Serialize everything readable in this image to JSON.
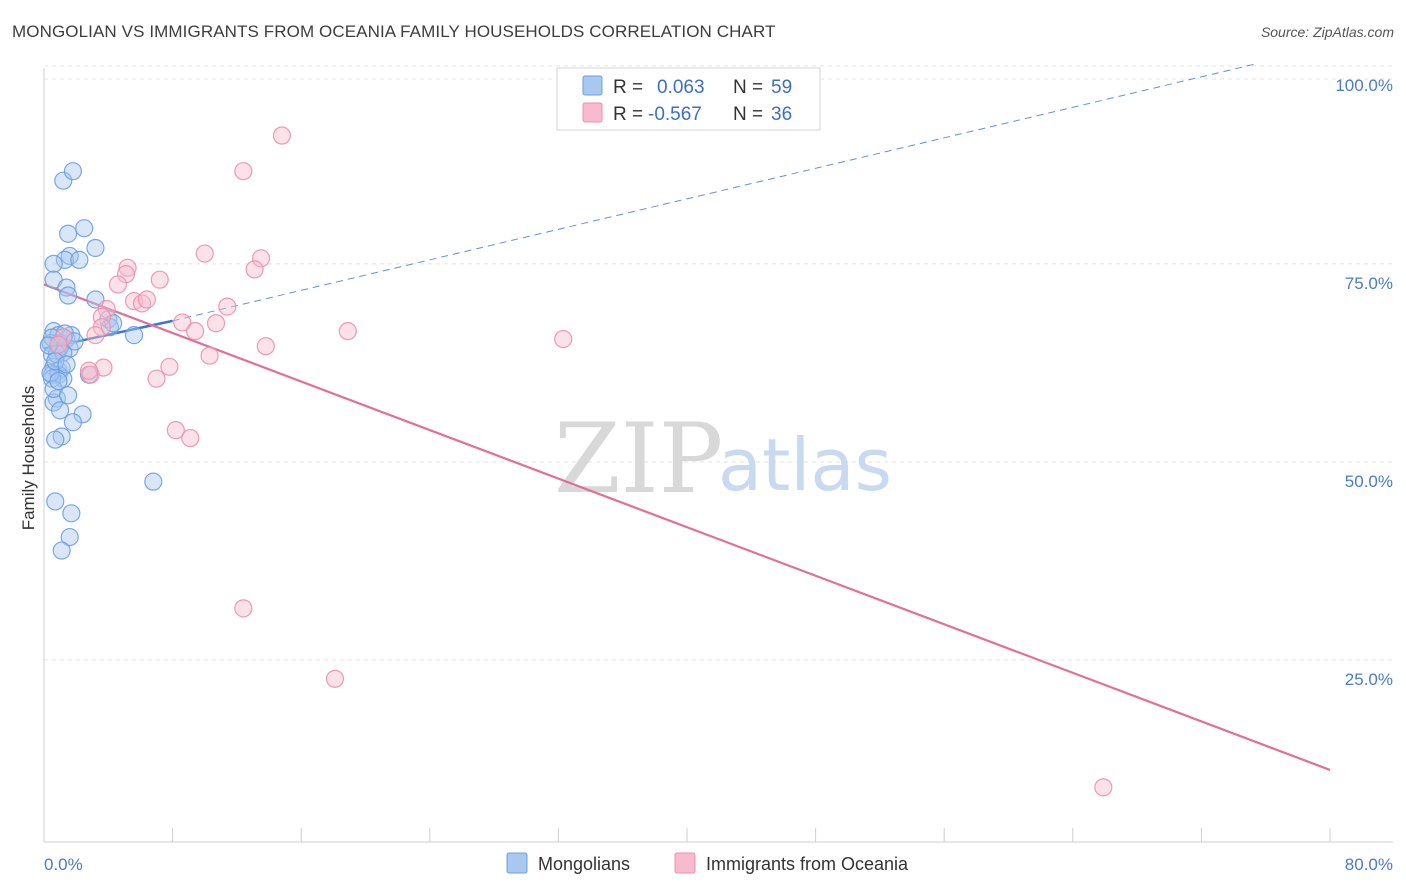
{
  "header": {
    "title": "MONGOLIAN VS IMMIGRANTS FROM OCEANIA FAMILY HOUSEHOLDS CORRELATION CHART",
    "source": "Source: ZipAtlas.com"
  },
  "watermark": {
    "zip": "ZIP",
    "atlas": "atlas"
  },
  "legend": {
    "r_label": "R =",
    "n_label": "N =",
    "rows": [
      {
        "r": "0.063",
        "n": "59"
      },
      {
        "r": "-0.567",
        "n": "36"
      }
    ]
  },
  "colors": {
    "mongolians_fill": "#a9c8f0",
    "mongolians_stroke": "#6b9fe0",
    "mongolians_line": "#3a78c8",
    "oceania_fill": "#f6bccd",
    "oceania_stroke": "#ee8fae",
    "oceania_line": "#e0709a",
    "grid": "#e3e3e3",
    "tick_label": "#4a7cc9"
  },
  "chart_data": {
    "type": "scatter",
    "title": "MONGOLIAN VS IMMIGRANTS FROM OCEANIA FAMILY HOUSEHOLDS CORRELATION CHART",
    "xlabel": "",
    "ylabel": "Family Households",
    "xlim": [
      0,
      80
    ],
    "ylim": [
      2,
      102
    ],
    "x_tick_labels": [
      "0.0%",
      "80.0%"
    ],
    "y_ticks": [
      25,
      50,
      75,
      100
    ],
    "y_tick_labels": [
      "25.0%",
      "50.0%",
      "75.0%",
      "100.0%"
    ],
    "series": [
      {
        "name": "Mongolians",
        "r": 0.063,
        "n": 59,
        "points": [
          [
            1.2,
            85.5
          ],
          [
            1.8,
            86.7
          ],
          [
            1.5,
            78.8
          ],
          [
            2.5,
            79.5
          ],
          [
            3.2,
            77.0
          ],
          [
            1.6,
            76.0
          ],
          [
            1.3,
            75.5
          ],
          [
            0.6,
            75.0
          ],
          [
            2.2,
            75.5
          ],
          [
            0.6,
            73.0
          ],
          [
            1.4,
            72.0
          ],
          [
            1.5,
            71.0
          ],
          [
            3.2,
            70.5
          ],
          [
            4.0,
            68.0
          ],
          [
            4.1,
            67.0
          ],
          [
            5.6,
            66.0
          ],
          [
            0.6,
            66.5
          ],
          [
            0.9,
            66.0
          ],
          [
            1.4,
            65.5
          ],
          [
            1.7,
            66.0
          ],
          [
            1.0,
            65.0
          ],
          [
            0.4,
            65.0
          ],
          [
            0.9,
            64.0
          ],
          [
            0.5,
            63.5
          ],
          [
            1.6,
            64.3
          ],
          [
            1.0,
            64.5
          ],
          [
            0.6,
            62.0
          ],
          [
            0.9,
            61.5
          ],
          [
            1.1,
            61.8
          ],
          [
            0.5,
            61.0
          ],
          [
            0.9,
            61.0
          ],
          [
            1.2,
            60.5
          ],
          [
            0.5,
            60.5
          ],
          [
            0.4,
            61.2
          ],
          [
            0.8,
            58.0
          ],
          [
            0.6,
            57.5
          ],
          [
            1.0,
            56.5
          ],
          [
            2.4,
            56.0
          ],
          [
            1.8,
            55.0
          ],
          [
            1.1,
            53.2
          ],
          [
            0.7,
            52.8
          ],
          [
            6.8,
            47.5
          ],
          [
            0.7,
            45.0
          ],
          [
            1.7,
            43.5
          ],
          [
            1.6,
            40.5
          ],
          [
            1.1,
            38.8
          ],
          [
            0.5,
            65.7
          ],
          [
            1.3,
            66.2
          ],
          [
            4.3,
            67.5
          ],
          [
            0.8,
            63.6
          ],
          [
            1.2,
            63.8
          ],
          [
            0.3,
            64.7
          ],
          [
            0.7,
            62.7
          ],
          [
            2.8,
            61.0
          ],
          [
            1.9,
            65.2
          ],
          [
            1.4,
            62.3
          ],
          [
            0.6,
            59.2
          ],
          [
            1.5,
            58.4
          ],
          [
            0.9,
            60.2
          ]
        ],
        "trend": {
          "x": [
            0,
            8
          ],
          "y": [
            64.3,
            67.8
          ]
        },
        "trend_extended": {
          "x": [
            8,
            75.5
          ],
          "y": [
            67.8,
            100.3
          ]
        }
      },
      {
        "name": "Immigrants from Oceania",
        "r": -0.567,
        "n": 36,
        "points": [
          [
            14.8,
            91.2
          ],
          [
            12.4,
            86.7
          ],
          [
            10.0,
            76.3
          ],
          [
            13.5,
            75.7
          ],
          [
            13.1,
            74.3
          ],
          [
            5.2,
            74.5
          ],
          [
            5.1,
            73.7
          ],
          [
            7.2,
            73.0
          ],
          [
            4.6,
            72.4
          ],
          [
            5.6,
            70.3
          ],
          [
            6.1,
            70.0
          ],
          [
            6.4,
            70.5
          ],
          [
            11.4,
            69.6
          ],
          [
            3.9,
            69.3
          ],
          [
            3.6,
            68.3
          ],
          [
            8.6,
            67.6
          ],
          [
            10.7,
            67.5
          ],
          [
            9.4,
            66.5
          ],
          [
            18.9,
            66.5
          ],
          [
            3.6,
            67.0
          ],
          [
            3.2,
            66.0
          ],
          [
            32.3,
            65.5
          ],
          [
            13.8,
            64.6
          ],
          [
            3.7,
            61.9
          ],
          [
            10.3,
            63.4
          ],
          [
            7.8,
            62.0
          ],
          [
            2.9,
            61.0
          ],
          [
            7.0,
            60.5
          ],
          [
            8.2,
            54.0
          ],
          [
            9.1,
            53.0
          ],
          [
            12.4,
            31.5
          ],
          [
            18.1,
            22.6
          ],
          [
            65.9,
            8.9
          ],
          [
            1.2,
            65.7
          ],
          [
            2.8,
            61.5
          ],
          [
            0.9,
            64.8
          ]
        ],
        "trend": {
          "x": [
            0,
            80
          ],
          "y": [
            72.4,
            11.1
          ]
        }
      }
    ],
    "legend_position": "top-center",
    "bottom_legend": [
      "Mongolians",
      "Immigrants from Oceania"
    ],
    "grid": true
  }
}
